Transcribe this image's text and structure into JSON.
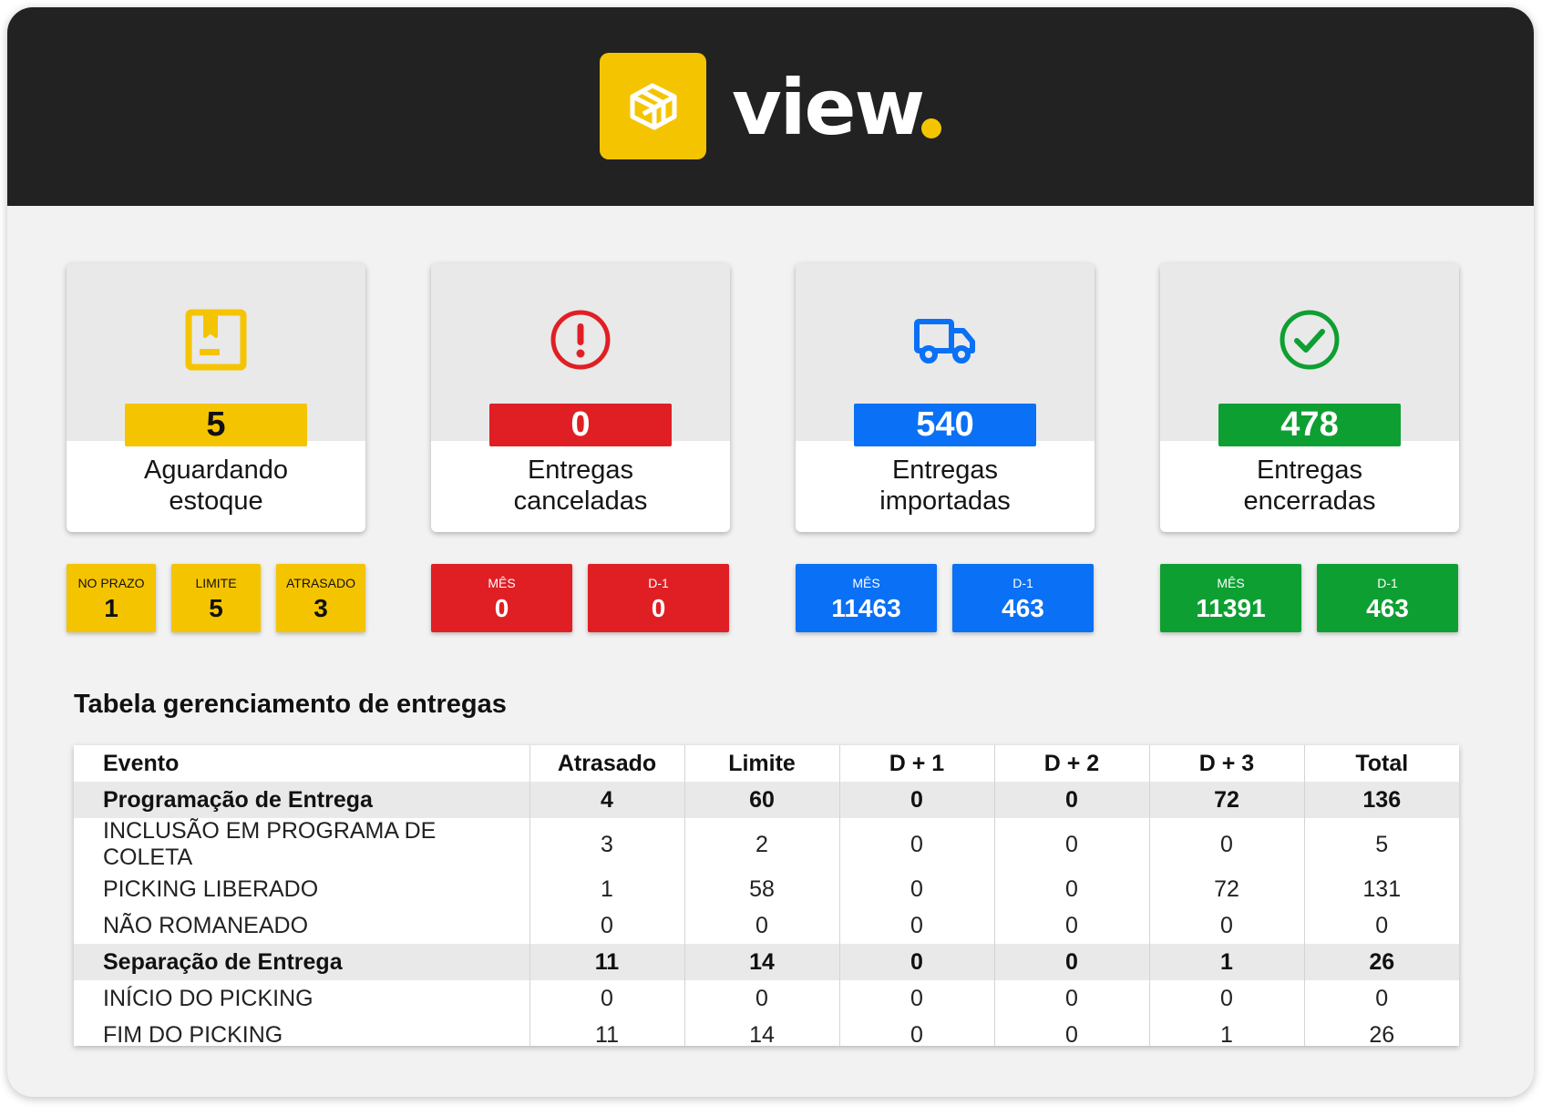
{
  "brand": {
    "name": "view",
    "accent": "#f5c400"
  },
  "cards": [
    {
      "id": "aguardando",
      "value": "5",
      "label_line1": "Aguardando",
      "label_line2": "estoque",
      "color": "#f5c400",
      "icon": "package-box-icon"
    },
    {
      "id": "canceladas",
      "value": "0",
      "label_line1": "Entregas",
      "label_line2": "canceladas",
      "color": "#e01f24",
      "icon": "alert-circle-icon"
    },
    {
      "id": "importadas",
      "value": "540",
      "label_line1": "Entregas",
      "label_line2": "importadas",
      "color": "#0a70f5",
      "icon": "truck-icon"
    },
    {
      "id": "encerradas",
      "value": "478",
      "label_line1": "Entregas",
      "label_line2": "encerradas",
      "color": "#0e9f32",
      "icon": "check-circle-icon"
    }
  ],
  "subs": {
    "aguardando": [
      {
        "label": "NO PRAZO",
        "value": "1"
      },
      {
        "label": "LIMITE",
        "value": "5"
      },
      {
        "label": "ATRASADO",
        "value": "3"
      }
    ],
    "canceladas": [
      {
        "label": "MÊS",
        "value": "0"
      },
      {
        "label": "D-1",
        "value": "0"
      }
    ],
    "importadas": [
      {
        "label": "MÊS",
        "value": "11463"
      },
      {
        "label": "D-1",
        "value": "463"
      }
    ],
    "encerradas": [
      {
        "label": "MÊS",
        "value": "11391"
      },
      {
        "label": "D-1",
        "value": "463"
      }
    ]
  },
  "table": {
    "title": "Tabela gerenciamento de entregas",
    "headers": [
      "Evento",
      "Atrasado",
      "Limite",
      "D + 1",
      "D + 2",
      "D + 3",
      "Total"
    ],
    "rows": [
      [
        "Programação de Entrega",
        "4",
        "60",
        "0",
        "0",
        "72",
        "136"
      ],
      [
        "INCLUSÃO EM PROGRAMA DE COLETA",
        "3",
        "2",
        "0",
        "0",
        "0",
        "5"
      ],
      [
        "PICKING LIBERADO",
        "1",
        "58",
        "0",
        "0",
        "72",
        "131"
      ],
      [
        "NÃO ROMANEADO",
        "0",
        "0",
        "0",
        "0",
        "0",
        "0"
      ],
      [
        "Separação de Entrega",
        "11",
        "14",
        "0",
        "0",
        "1",
        "26"
      ],
      [
        "INÍCIO DO PICKING",
        "0",
        "0",
        "0",
        "0",
        "0",
        "0"
      ],
      [
        "FIM DO PICKING",
        "11",
        "14",
        "0",
        "0",
        "1",
        "26"
      ]
    ]
  }
}
